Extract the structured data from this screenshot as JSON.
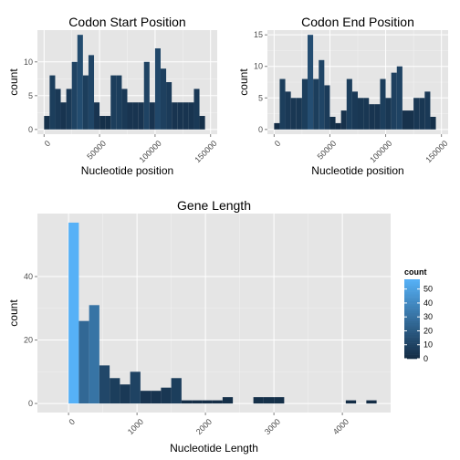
{
  "chart_data": [
    {
      "type": "bar",
      "title": "Codon Start Position",
      "xlabel": "Nucleotide position",
      "ylabel": "count",
      "xlim": [
        -6000,
        156000
      ],
      "ylim": [
        -0.7,
        14.7
      ],
      "xticks": [
        0,
        50000,
        100000,
        150000
      ],
      "xtick_labels": [
        "0",
        "50000",
        "100000",
        "150000"
      ],
      "yticks": [
        0,
        5,
        10
      ],
      "ytick_labels": [
        "0",
        "5",
        "10"
      ],
      "grid": true,
      "bin_width": 5000,
      "bins": [
        {
          "x0": 0,
          "count": 2
        },
        {
          "x0": 5000,
          "count": 8
        },
        {
          "x0": 10000,
          "count": 6
        },
        {
          "x0": 15000,
          "count": 4
        },
        {
          "x0": 20000,
          "count": 6
        },
        {
          "x0": 25000,
          "count": 10
        },
        {
          "x0": 30000,
          "count": 14
        },
        {
          "x0": 35000,
          "count": 8
        },
        {
          "x0": 40000,
          "count": 11
        },
        {
          "x0": 45000,
          "count": 4
        },
        {
          "x0": 50000,
          "count": 2
        },
        {
          "x0": 55000,
          "count": 2
        },
        {
          "x0": 60000,
          "count": 8
        },
        {
          "x0": 65000,
          "count": 8
        },
        {
          "x0": 70000,
          "count": 6
        },
        {
          "x0": 75000,
          "count": 4
        },
        {
          "x0": 80000,
          "count": 4
        },
        {
          "x0": 85000,
          "count": 4
        },
        {
          "x0": 90000,
          "count": 10
        },
        {
          "x0": 95000,
          "count": 4
        },
        {
          "x0": 100000,
          "count": 12
        },
        {
          "x0": 105000,
          "count": 9
        },
        {
          "x0": 110000,
          "count": 7
        },
        {
          "x0": 115000,
          "count": 4
        },
        {
          "x0": 120000,
          "count": 4
        },
        {
          "x0": 125000,
          "count": 4
        },
        {
          "x0": 130000,
          "count": 4
        },
        {
          "x0": 135000,
          "count": 6
        },
        {
          "x0": 140000,
          "count": 2
        }
      ]
    },
    {
      "type": "bar",
      "title": "Codon End Position",
      "xlabel": "Nucleotide position",
      "ylabel": "count",
      "xlim": [
        -6000,
        156000
      ],
      "ylim": [
        -0.75,
        15.75
      ],
      "xticks": [
        0,
        50000,
        100000,
        150000
      ],
      "xtick_labels": [
        "0",
        "50000",
        "100000",
        "150000"
      ],
      "yticks": [
        0,
        5,
        10,
        15
      ],
      "ytick_labels": [
        "0",
        "5",
        "10",
        "15"
      ],
      "grid": true,
      "bin_width": 5000,
      "bins": [
        {
          "x0": 0,
          "count": 1
        },
        {
          "x0": 5000,
          "count": 8
        },
        {
          "x0": 10000,
          "count": 6
        },
        {
          "x0": 15000,
          "count": 5
        },
        {
          "x0": 20000,
          "count": 5
        },
        {
          "x0": 25000,
          "count": 8
        },
        {
          "x0": 30000,
          "count": 15
        },
        {
          "x0": 35000,
          "count": 8
        },
        {
          "x0": 40000,
          "count": 11
        },
        {
          "x0": 45000,
          "count": 7
        },
        {
          "x0": 50000,
          "count": 2
        },
        {
          "x0": 55000,
          "count": 1
        },
        {
          "x0": 60000,
          "count": 3
        },
        {
          "x0": 65000,
          "count": 8
        },
        {
          "x0": 70000,
          "count": 6
        },
        {
          "x0": 75000,
          "count": 5
        },
        {
          "x0": 80000,
          "count": 5
        },
        {
          "x0": 85000,
          "count": 4
        },
        {
          "x0": 90000,
          "count": 4
        },
        {
          "x0": 95000,
          "count": 8
        },
        {
          "x0": 100000,
          "count": 5
        },
        {
          "x0": 105000,
          "count": 9
        },
        {
          "x0": 110000,
          "count": 10
        },
        {
          "x0": 115000,
          "count": 3
        },
        {
          "x0": 120000,
          "count": 3
        },
        {
          "x0": 125000,
          "count": 5
        },
        {
          "x0": 130000,
          "count": 5
        },
        {
          "x0": 135000,
          "count": 6
        },
        {
          "x0": 140000,
          "count": 2
        }
      ]
    },
    {
      "type": "bar",
      "title": "Gene Length",
      "xlabel": "Nucleotide Length",
      "ylabel": "count",
      "xlim": [
        -455,
        4705
      ],
      "ylim": [
        -2.85,
        59.85
      ],
      "xticks": [
        0,
        1000,
        2000,
        3000,
        4000
      ],
      "xtick_labels": [
        "0",
        "1000",
        "2000",
        "3000",
        "4000"
      ],
      "yticks": [
        0,
        20,
        40
      ],
      "ytick_labels": [
        "0",
        "20",
        "40"
      ],
      "grid": true,
      "bin_width": 150,
      "bins": [
        {
          "x0": 0,
          "count": 57
        },
        {
          "x0": 150,
          "count": 26
        },
        {
          "x0": 300,
          "count": 31
        },
        {
          "x0": 450,
          "count": 12
        },
        {
          "x0": 600,
          "count": 8
        },
        {
          "x0": 750,
          "count": 6
        },
        {
          "x0": 900,
          "count": 10
        },
        {
          "x0": 1050,
          "count": 4
        },
        {
          "x0": 1200,
          "count": 4
        },
        {
          "x0": 1350,
          "count": 5
        },
        {
          "x0": 1500,
          "count": 8
        },
        {
          "x0": 1650,
          "count": 1
        },
        {
          "x0": 1800,
          "count": 1
        },
        {
          "x0": 1950,
          "count": 1
        },
        {
          "x0": 2100,
          "count": 1
        },
        {
          "x0": 2250,
          "count": 2
        },
        {
          "x0": 2400,
          "count": 0
        },
        {
          "x0": 2550,
          "count": 0
        },
        {
          "x0": 2700,
          "count": 2
        },
        {
          "x0": 2850,
          "count": 2
        },
        {
          "x0": 3000,
          "count": 2
        },
        {
          "x0": 3150,
          "count": 0
        },
        {
          "x0": 3300,
          "count": 0
        },
        {
          "x0": 3450,
          "count": 0
        },
        {
          "x0": 3600,
          "count": 0
        },
        {
          "x0": 3750,
          "count": 0
        },
        {
          "x0": 3900,
          "count": 0
        },
        {
          "x0": 4050,
          "count": 1
        },
        {
          "x0": 4200,
          "count": 0
        },
        {
          "x0": 4350,
          "count": 1
        }
      ]
    }
  ],
  "legend": {
    "title": "count",
    "placement": "right",
    "labels": [
      "50",
      "40",
      "30",
      "20",
      "10",
      "0"
    ],
    "values": [
      50,
      40,
      30,
      20,
      10,
      0
    ],
    "domain": [
      0,
      57
    ]
  },
  "colors": {
    "panel_background": "#e5e5e5",
    "grid_major": "#ffffff",
    "grid_minor": "#f2f2f2",
    "gradient_low": "#132b43",
    "gradient_high": "#56b1f7",
    "tick_text": "#4d4d4d",
    "tick_mark": "#7f7f7f",
    "text": "#000000"
  }
}
